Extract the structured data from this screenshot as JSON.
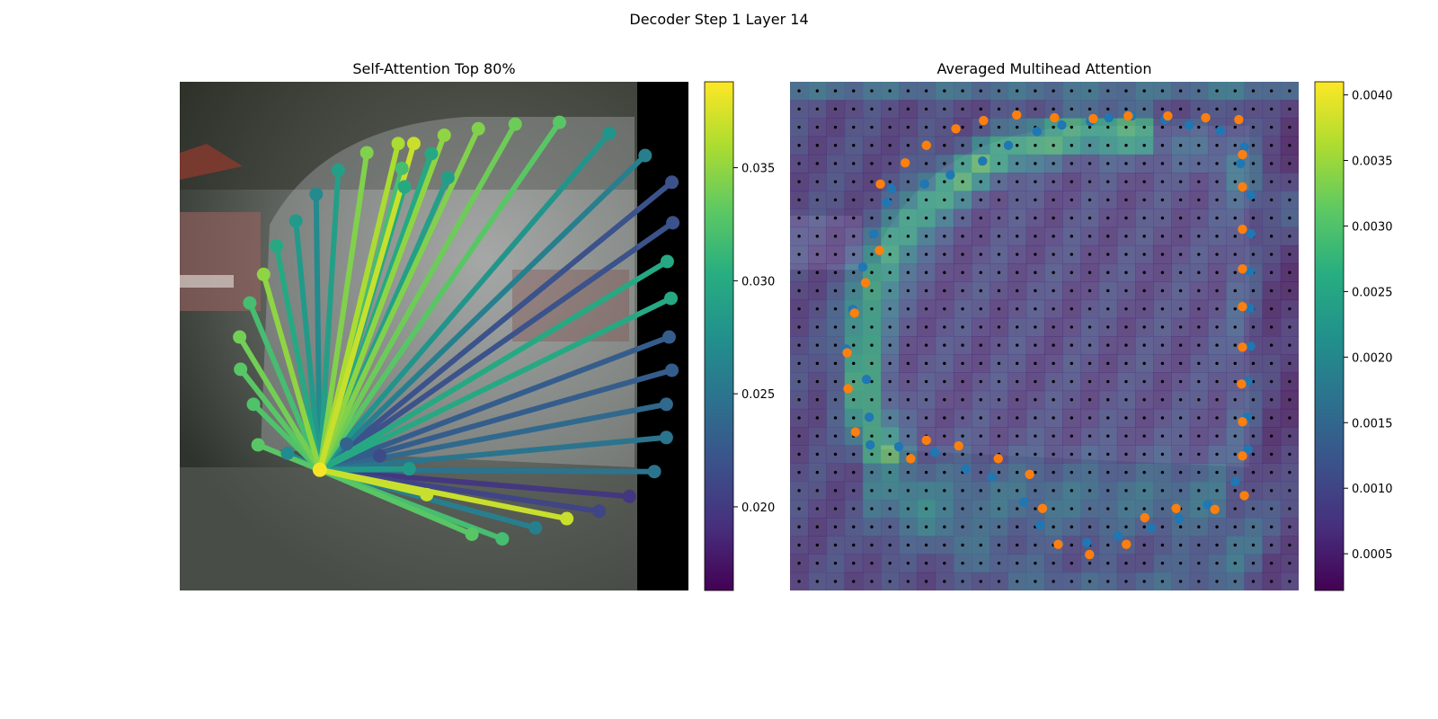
{
  "figure": {
    "suptitle": "Decoder Step 1 Layer 14"
  },
  "chart_data": [
    {
      "type": "scatter",
      "subtype": "attention-lines-over-image",
      "title": "Self-Attention Top 80%",
      "query_point": {
        "x": 152,
        "y": 421,
        "value": 0.0385
      },
      "points": [
        {
          "x": 254,
          "y": 67,
          "v": 0.037
        },
        {
          "x": 287,
          "y": 58,
          "v": 0.035
        },
        {
          "x": 324,
          "y": 51,
          "v": 0.0345
        },
        {
          "x": 364,
          "y": 46,
          "v": 0.0338
        },
        {
          "x": 412,
          "y": 44,
          "v": 0.033
        },
        {
          "x": 466,
          "y": 56,
          "v": 0.028
        },
        {
          "x": 241,
          "y": 94,
          "v": 0.032
        },
        {
          "x": 244,
          "y": 114,
          "v": 0.03
        },
        {
          "x": 273,
          "y": 78,
          "v": 0.03
        },
        {
          "x": 291,
          "y": 104,
          "v": 0.029
        },
        {
          "x": 505,
          "y": 80,
          "v": 0.026
        },
        {
          "x": 534,
          "y": 109,
          "v": 0.022
        },
        {
          "x": 535,
          "y": 153,
          "v": 0.022
        },
        {
          "x": 529,
          "y": 195,
          "v": 0.03
        },
        {
          "x": 533,
          "y": 235,
          "v": 0.03
        },
        {
          "x": 531,
          "y": 277,
          "v": 0.023
        },
        {
          "x": 534,
          "y": 313,
          "v": 0.023
        },
        {
          "x": 528,
          "y": 350,
          "v": 0.024
        },
        {
          "x": 528,
          "y": 386,
          "v": 0.025
        },
        {
          "x": 515,
          "y": 423,
          "v": 0.025
        },
        {
          "x": 488,
          "y": 450,
          "v": 0.02
        },
        {
          "x": 455,
          "y": 466,
          "v": 0.021
        },
        {
          "x": 420,
          "y": 474,
          "v": 0.037
        },
        {
          "x": 386,
          "y": 484,
          "v": 0.026
        },
        {
          "x": 350,
          "y": 496,
          "v": 0.032
        },
        {
          "x": 317,
          "y": 491,
          "v": 0.033
        },
        {
          "x": 268,
          "y": 448,
          "v": 0.037
        },
        {
          "x": 249,
          "y": 420,
          "v": 0.0285
        },
        {
          "x": 217,
          "y": 406,
          "v": 0.0215
        },
        {
          "x": 181,
          "y": 393,
          "v": 0.0235
        },
        {
          "x": 117,
          "y": 403,
          "v": 0.027
        },
        {
          "x": 85,
          "y": 394,
          "v": 0.033
        },
        {
          "x": 80,
          "y": 350,
          "v": 0.0325
        },
        {
          "x": 66,
          "y": 312,
          "v": 0.033
        },
        {
          "x": 65,
          "y": 277,
          "v": 0.034
        },
        {
          "x": 76,
          "y": 240,
          "v": 0.032
        },
        {
          "x": 91,
          "y": 209,
          "v": 0.035
        },
        {
          "x": 105,
          "y": 178,
          "v": 0.03
        },
        {
          "x": 126,
          "y": 151,
          "v": 0.0285
        },
        {
          "x": 148,
          "y": 122,
          "v": 0.027
        },
        {
          "x": 172,
          "y": 96,
          "v": 0.029
        },
        {
          "x": 203,
          "y": 77,
          "v": 0.0345
        },
        {
          "x": 237,
          "y": 67,
          "v": 0.036
        }
      ],
      "xlim": [
        0,
        552
      ],
      "ylim": [
        552,
        0
      ],
      "colormap": "viridis",
      "colorbar": {
        "range": [
          0.0163,
          0.0388
        ],
        "ticks": [
          "0.020",
          "0.025",
          "0.030",
          "0.035"
        ],
        "tick_values": [
          0.02,
          0.025,
          0.03,
          0.035
        ]
      }
    },
    {
      "type": "heatmap",
      "title": "Averaged Multihead Attention",
      "grid": [
        28,
        28
      ],
      "colormap": "viridis",
      "colorbar": {
        "range": [
          0.00022,
          0.0041
        ],
        "ticks": [
          "0.0005",
          "0.0010",
          "0.0015",
          "0.0020",
          "0.0025",
          "0.0030",
          "0.0035",
          "0.0040"
        ],
        "tick_values": [
          0.0005,
          0.001,
          0.0015,
          0.002,
          0.0025,
          0.003,
          0.0035,
          0.004
        ]
      },
      "blue_series": [
        [
          110,
          116
        ],
        [
          146,
          111
        ],
        [
          174,
          101
        ],
        [
          209,
          86
        ],
        [
          237,
          69
        ],
        [
          268,
          54
        ],
        [
          295,
          47
        ],
        [
          326,
          43
        ],
        [
          346,
          39
        ],
        [
          371,
          37
        ],
        [
          407,
          41
        ],
        [
          433,
          47
        ],
        [
          467,
          53
        ],
        [
          493,
          71
        ],
        [
          489,
          89
        ],
        [
          500,
          123
        ],
        [
          500,
          165
        ],
        [
          499,
          206
        ],
        [
          499,
          246
        ],
        [
          500,
          287
        ],
        [
          497,
          325
        ],
        [
          496,
          364
        ],
        [
          497,
          399
        ],
        [
          483,
          434
        ],
        [
          453,
          459
        ],
        [
          422,
          474
        ],
        [
          392,
          484
        ],
        [
          356,
          493
        ],
        [
          322,
          500
        ],
        [
          292,
          501
        ],
        [
          271,
          481
        ],
        [
          254,
          456
        ],
        [
          219,
          429
        ],
        [
          191,
          420
        ],
        [
          157,
          402
        ],
        [
          118,
          396
        ],
        [
          87,
          394
        ],
        [
          86,
          364
        ],
        [
          83,
          323
        ],
        [
          61,
          290
        ],
        [
          68,
          247
        ],
        [
          79,
          201
        ],
        [
          91,
          165
        ],
        [
          105,
          131
        ]
      ],
      "orange_series": [
        [
          98,
          111
        ],
        [
          125,
          88
        ],
        [
          148,
          69
        ],
        [
          180,
          51
        ],
        [
          210,
          42
        ],
        [
          246,
          36
        ],
        [
          287,
          39
        ],
        [
          329,
          40
        ],
        [
          367,
          37
        ],
        [
          410,
          37
        ],
        [
          451,
          39
        ],
        [
          487,
          41
        ],
        [
          491,
          79
        ],
        [
          491,
          114
        ],
        [
          491,
          160
        ],
        [
          491,
          203
        ],
        [
          491,
          244
        ],
        [
          491,
          288
        ],
        [
          490,
          328
        ],
        [
          491,
          369
        ],
        [
          491,
          406
        ],
        [
          493,
          449
        ],
        [
          461,
          464
        ],
        [
          419,
          463
        ],
        [
          385,
          473
        ],
        [
          365,
          502
        ],
        [
          325,
          513
        ],
        [
          291,
          502
        ],
        [
          274,
          463
        ],
        [
          260,
          426
        ],
        [
          226,
          409
        ],
        [
          183,
          395
        ],
        [
          148,
          389
        ],
        [
          131,
          409
        ],
        [
          71,
          380
        ],
        [
          63,
          333
        ],
        [
          62,
          294
        ],
        [
          70,
          251
        ],
        [
          82,
          218
        ],
        [
          97,
          183
        ]
      ]
    }
  ]
}
